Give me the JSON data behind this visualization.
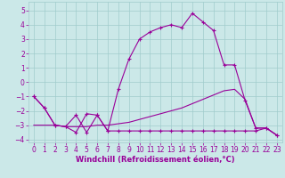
{
  "xlabel": "Windchill (Refroidissement éolien,°C)",
  "bg_color": "#cbe8e8",
  "line_color": "#990099",
  "xlim": [
    -0.5,
    23.5
  ],
  "ylim": [
    -4.2,
    5.6
  ],
  "yticks": [
    -4,
    -3,
    -2,
    -1,
    0,
    1,
    2,
    3,
    4,
    5
  ],
  "xticks": [
    0,
    1,
    2,
    3,
    4,
    5,
    6,
    7,
    8,
    9,
    10,
    11,
    12,
    13,
    14,
    15,
    16,
    17,
    18,
    19,
    20,
    21,
    22,
    23
  ],
  "line1_x": [
    0,
    1,
    2,
    3,
    4,
    5,
    6,
    7,
    8,
    9,
    10,
    11,
    12,
    13,
    14,
    15,
    16,
    17,
    18,
    19,
    20,
    21,
    22,
    23
  ],
  "line1_y": [
    -1.0,
    -1.8,
    -3.0,
    -3.1,
    -3.5,
    -2.2,
    -2.3,
    -3.4,
    -0.5,
    1.6,
    3.0,
    3.5,
    3.8,
    4.0,
    3.8,
    4.8,
    4.2,
    3.6,
    1.2,
    1.2,
    -1.3,
    -3.2,
    -3.2,
    -3.7
  ],
  "line2_x": [
    0,
    1,
    2,
    3,
    4,
    5,
    6,
    7,
    8,
    9,
    10,
    11,
    12,
    13,
    14,
    15,
    16,
    17,
    18,
    19,
    20,
    21,
    22,
    23
  ],
  "line2_y": [
    -1.0,
    -1.8,
    -3.0,
    -3.1,
    -2.3,
    -3.5,
    -2.3,
    -3.4,
    -3.4,
    -3.4,
    -3.4,
    -3.4,
    -3.4,
    -3.4,
    -3.4,
    -3.4,
    -3.4,
    -3.4,
    -3.4,
    -3.4,
    -3.4,
    -3.4,
    -3.2,
    -3.7
  ],
  "line3_x": [
    0,
    1,
    2,
    3,
    4,
    5,
    6,
    7,
    8,
    9,
    10,
    11,
    12,
    13,
    14,
    15,
    16,
    17,
    18,
    19,
    20,
    21,
    22,
    23
  ],
  "line3_y": [
    -3.0,
    -3.0,
    -3.0,
    -3.1,
    -3.1,
    -3.1,
    -3.0,
    -3.0,
    -2.9,
    -2.8,
    -2.6,
    -2.4,
    -2.2,
    -2.0,
    -1.8,
    -1.5,
    -1.2,
    -0.9,
    -0.6,
    -0.5,
    -1.2,
    -3.2,
    -3.2,
    -3.7
  ],
  "xlabel_fontsize": 6.0,
  "tick_fontsize": 5.5,
  "grid_color": "#a0cccc",
  "linewidth": 0.8,
  "markersize": 3.5
}
